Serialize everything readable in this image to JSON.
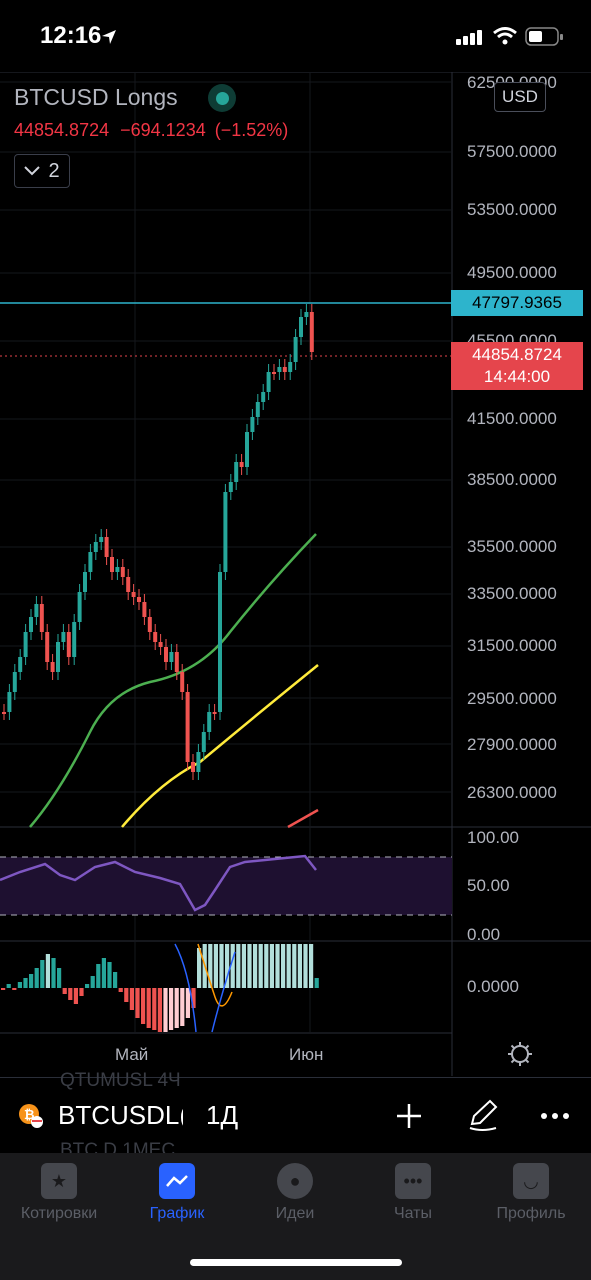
{
  "status": {
    "time": "12:16"
  },
  "chart": {
    "symbol": "BTCUSD Longs",
    "price": "44854.8724",
    "change": "−694.1234",
    "change_pct": "(−1.52%)",
    "collapse_count": "2",
    "currency": "USD",
    "price_axis": [
      "62500.0000",
      "57500.0000",
      "53500.0000",
      "49500.0000",
      "45500.0000",
      "41500.0000",
      "38500.0000",
      "35500.0000",
      "33500.0000",
      "31500.0000",
      "29500.0000",
      "27900.0000",
      "26300.0000"
    ],
    "cyan_tag": "47797.9365",
    "red_tag_price": "44854.8724",
    "red_tag_time": "14:44:00",
    "rsi_axis": [
      "100.00",
      "50.00",
      "0.00"
    ],
    "macd_axis": "0.0000",
    "time_axis": [
      "Май",
      "Июн"
    ],
    "colors": {
      "up": "#26a69a",
      "down": "#ef5350",
      "ma_fast": "#4caf50",
      "ma_slow": "#ffeb3b",
      "rsi": "#7e57c2",
      "cyan": "#2db4cc"
    }
  },
  "toolbar": {
    "symbol": "BTCUSDL(",
    "interval": "1Д",
    "ghost_row1": "QTUMUSL   4Ч",
    "ghost_row2": "BTC.D   1MEC",
    "icons": [
      "bitcoin-icon",
      "plus-icon",
      "pen-icon",
      "more-icon"
    ]
  },
  "tabs": [
    {
      "label": "Котировки",
      "icon": "star-icon"
    },
    {
      "label": "График",
      "icon": "chart-icon",
      "active": true
    },
    {
      "label": "Идеи",
      "icon": "bulb-icon"
    },
    {
      "label": "Чаты",
      "icon": "chat-icon"
    },
    {
      "label": "Профиль",
      "icon": "smile-icon"
    }
  ]
}
